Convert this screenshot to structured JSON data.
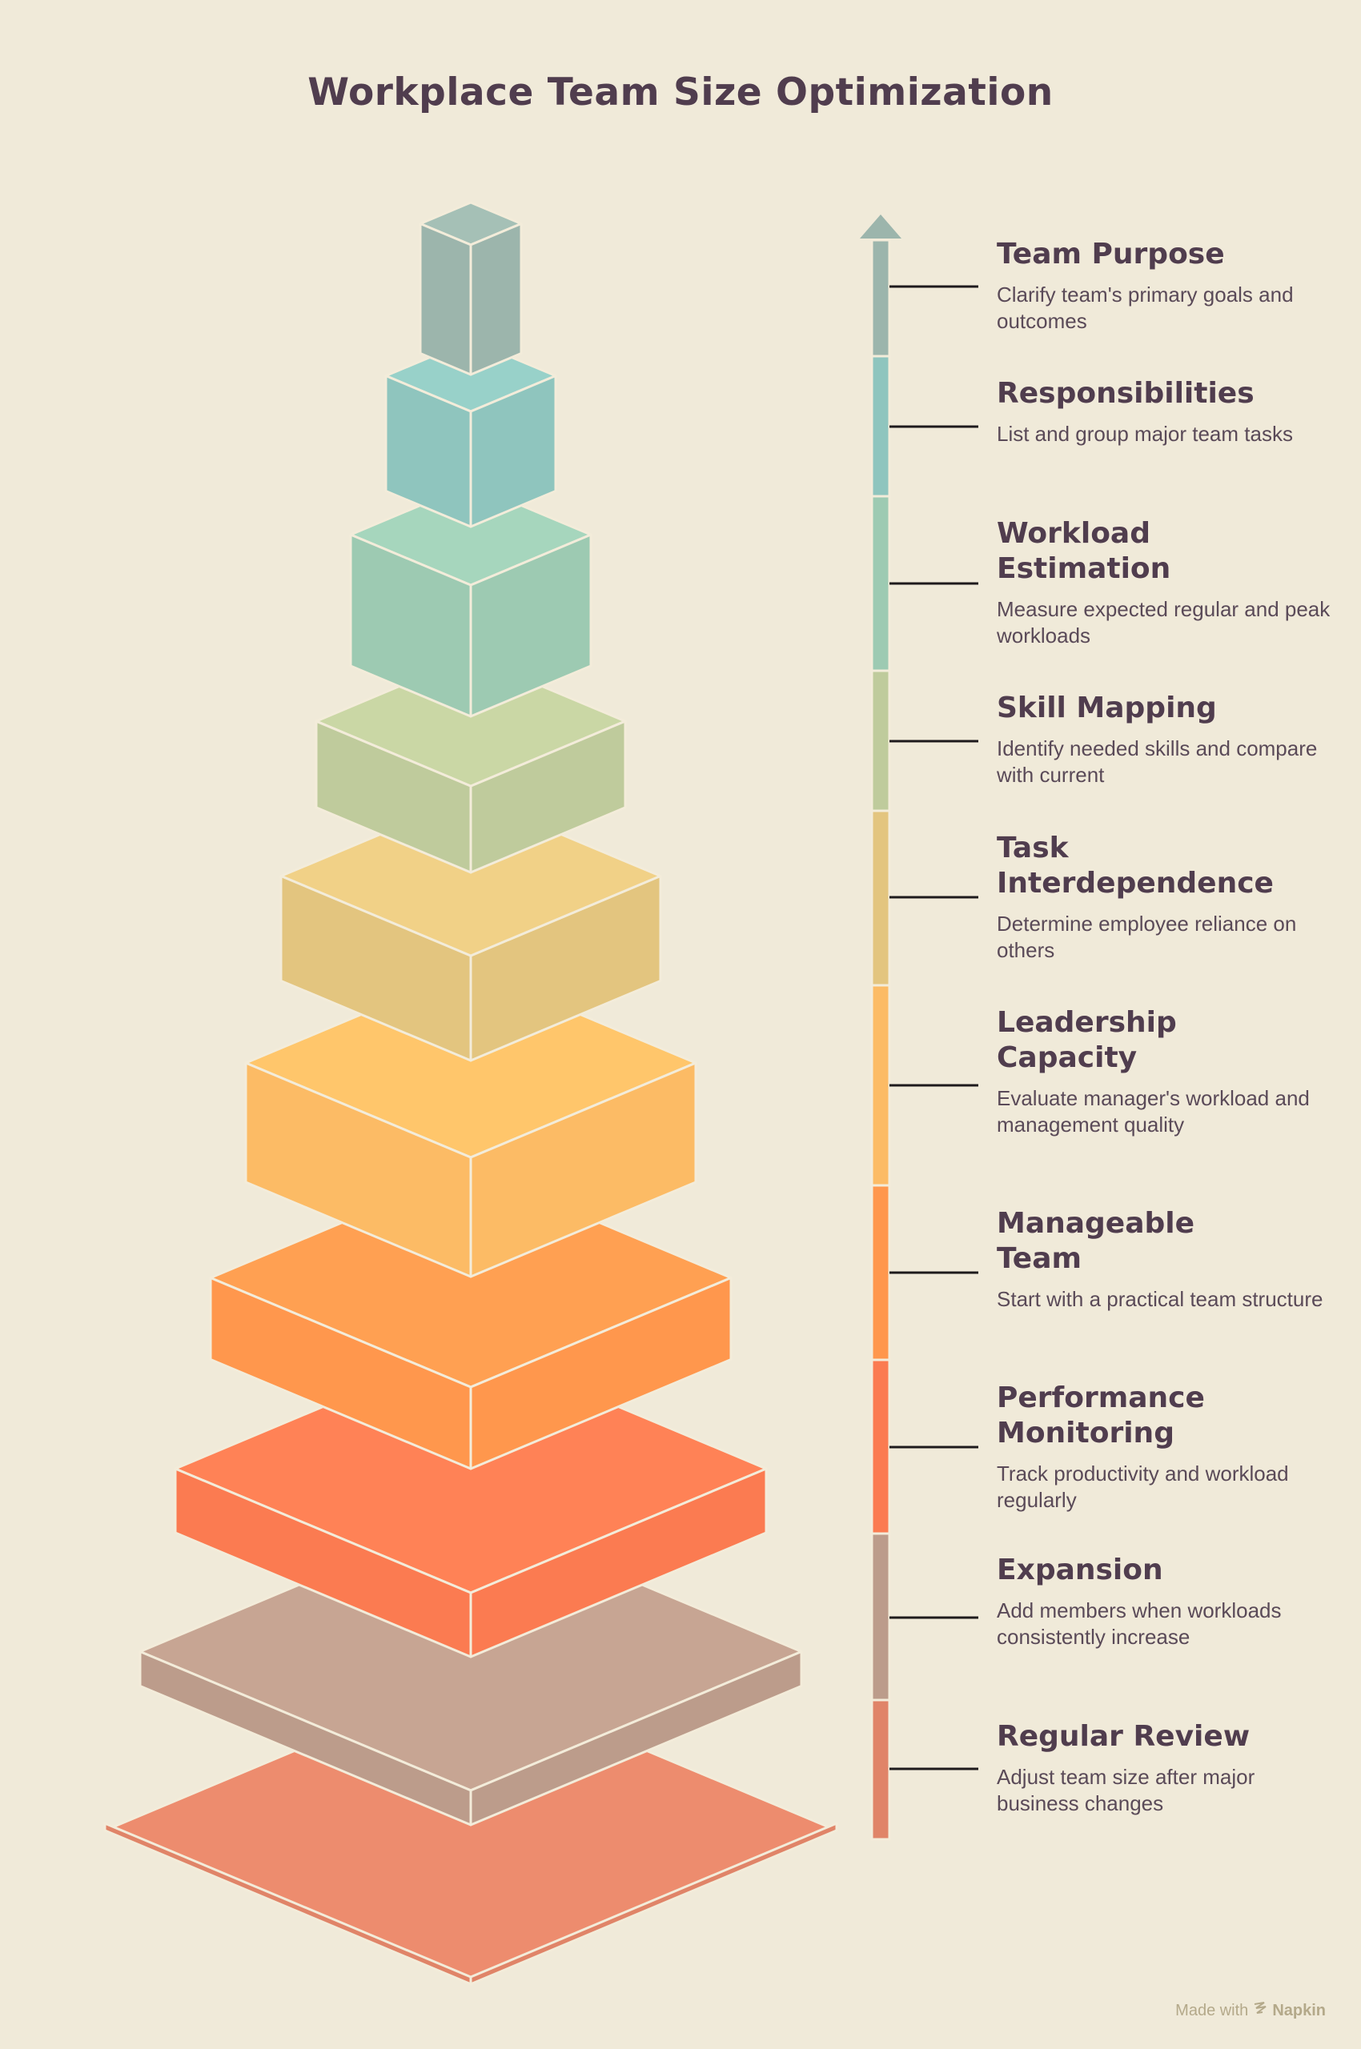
{
  "title": "Workplace Team Size Optimization",
  "levels": [
    {
      "title": "Team Purpose",
      "description": "Clarify team's primary goals and outcomes",
      "color": "#9CB5AC"
    },
    {
      "title": "Responsibilities",
      "description": "List and group major team tasks",
      "color": "#8FC5BE"
    },
    {
      "title": "Workload Estimation",
      "description": "Measure expected regular and peak workloads",
      "color": "#9DCAB2"
    },
    {
      "title": "Skill Mapping",
      "description": "Identify needed skills and compare with current",
      "color": "#BFCB9C"
    },
    {
      "title": "Task Interdependence",
      "description": "Determine employee reliance on others",
      "color": "#E3C57F"
    },
    {
      "title": "Leadership Capacity",
      "description": "Evaluate manager's workload and management quality",
      "color": "#FCBB65"
    },
    {
      "title": "Manageable Team",
      "description": "Start with a practical team structure",
      "color": "#FF974D"
    },
    {
      "title": "Performance Monitoring",
      "description": "Track productivity and workload regularly",
      "color": "#FB7B51"
    },
    {
      "title": "Expansion",
      "description": "Add members when workloads consistently increase",
      "color": "#BC9C8B"
    },
    {
      "title": "Regular Review",
      "description": "Adjust team size after major business changes",
      "color": "#E08468"
    }
  ],
  "footer": {
    "made_with": "Made with",
    "brand": "Napkin"
  }
}
